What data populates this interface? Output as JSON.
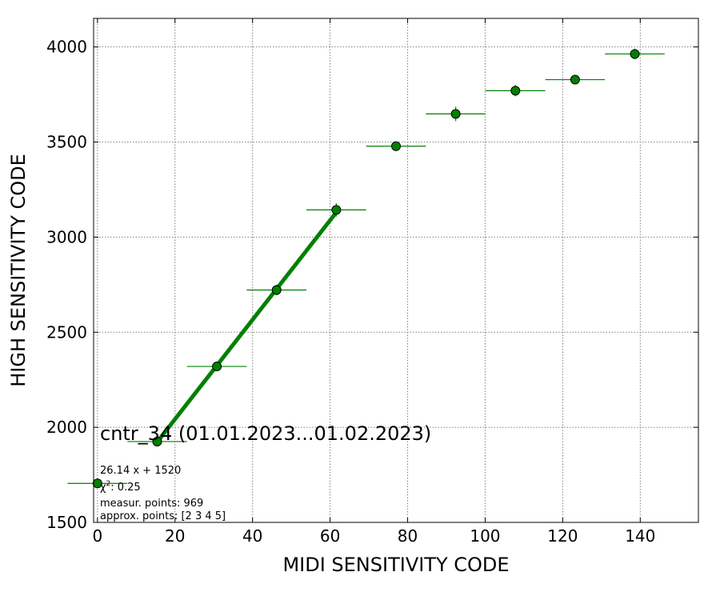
{
  "chart_data": {
    "type": "scatter",
    "title": "cntr_34 (01.01.2023...01.02.2023)",
    "xlabel": "MIDI SENSITIVITY CODE",
    "ylabel": "HIGH SENSITIVITY CODE",
    "xlim": [
      -1,
      155
    ],
    "ylim": [
      1500,
      4150
    ],
    "xticks": [
      0,
      20,
      40,
      60,
      80,
      100,
      120,
      140
    ],
    "yticks": [
      1500,
      2000,
      2500,
      3000,
      3500,
      4000
    ],
    "grid": true,
    "colors": {
      "points": "#008000",
      "fit": "#008000",
      "edge": "#000000"
    },
    "series": [
      {
        "points": [
          {
            "x": 0.0,
            "y": 1705,
            "xerr": 7.7,
            "yerr": 0
          },
          {
            "x": 15.4,
            "y": 1925,
            "xerr": 7.7,
            "yerr": 15
          },
          {
            "x": 30.8,
            "y": 2320,
            "xerr": 7.7,
            "yerr": 20
          },
          {
            "x": 46.2,
            "y": 2722,
            "xerr": 7.7,
            "yerr": 28
          },
          {
            "x": 61.6,
            "y": 3143,
            "xerr": 7.7,
            "yerr": 35
          },
          {
            "x": 77.0,
            "y": 3478,
            "xerr": 7.7,
            "yerr": 25
          },
          {
            "x": 92.4,
            "y": 3648,
            "xerr": 7.7,
            "yerr": 38
          },
          {
            "x": 107.8,
            "y": 3770,
            "xerr": 7.7,
            "yerr": 30
          },
          {
            "x": 123.2,
            "y": 3828,
            "xerr": 7.7,
            "yerr": 25
          },
          {
            "x": 138.6,
            "y": 3963,
            "xerr": 7.7,
            "yerr": 28
          }
        ]
      }
    ],
    "fit": {
      "slope": 26.14,
      "intercept": 1520,
      "x_range": [
        15.4,
        61.6
      ]
    },
    "annotations": {
      "equation": "26.14 x + 1520",
      "chi2_symbol": "χ",
      "chi2_exp": "2",
      "chi2_value": ": 0.25",
      "measur_points": "measur. points: 969",
      "approx_points": "approx. points: [2 3 4 5]"
    }
  }
}
